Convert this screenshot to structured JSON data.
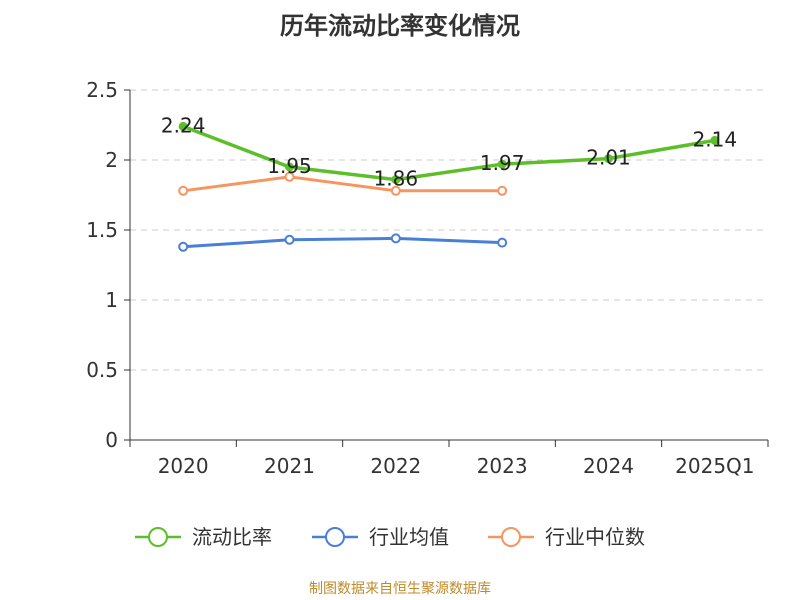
{
  "chart_data": {
    "type": "line",
    "title": "历年流动比率变化情况",
    "categories": [
      "2020",
      "2021",
      "2022",
      "2023",
      "2024",
      "2025Q1"
    ],
    "ylim": [
      0,
      2.5
    ],
    "yticks": [
      "0",
      "0.5",
      "1",
      "1.5",
      "2",
      "2.5"
    ],
    "grid": true,
    "legend_position": "bottom",
    "series": [
      {
        "name": "流动比率",
        "color": "#5cbf2a",
        "values": [
          2.24,
          1.95,
          1.86,
          1.97,
          2.01,
          2.14
        ],
        "labels": [
          "2.24",
          "1.95",
          "1.86",
          "1.97",
          "2.01",
          "2.14"
        ]
      },
      {
        "name": "行业均值",
        "color": "#4a7fd8",
        "values": [
          1.38,
          1.43,
          1.44,
          1.41,
          null,
          null
        ]
      },
      {
        "name": "行业中位数",
        "color": "#f79560",
        "values": [
          1.78,
          1.88,
          1.78,
          1.78,
          null,
          null
        ]
      }
    ]
  },
  "source_note": "制图数据来自恒生聚源数据库"
}
